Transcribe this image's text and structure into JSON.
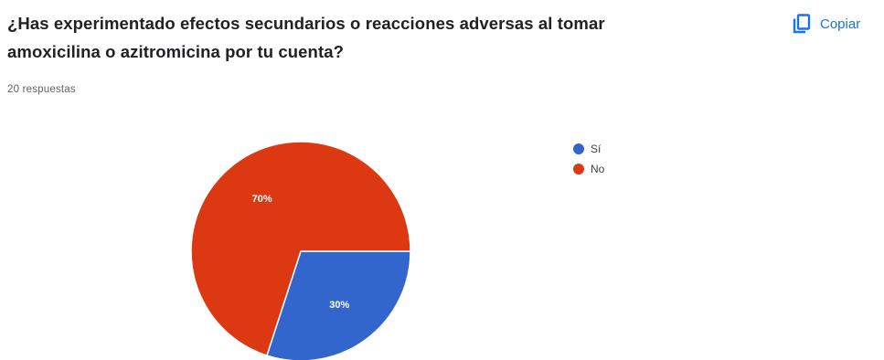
{
  "question": {
    "title": "¿Has experimentado efectos secundarios o reacciones adversas al tomar amoxicilina o azitromicina por tu cuenta?",
    "response_count": "20 respuestas"
  },
  "copy_button": {
    "label": "Copiar",
    "icon": "copy-icon"
  },
  "colors": {
    "accent": "#1a73e8",
    "si": "#3366cc",
    "no": "#dc3912"
  },
  "chart_data": {
    "type": "pie",
    "categories": [
      "Sí",
      "No"
    ],
    "values": [
      30,
      70
    ],
    "labels": [
      "30%",
      "70%"
    ],
    "colors": [
      "#3366cc",
      "#dc3912"
    ],
    "legend_position": "right",
    "title": "",
    "xlabel": "",
    "ylabel": ""
  }
}
